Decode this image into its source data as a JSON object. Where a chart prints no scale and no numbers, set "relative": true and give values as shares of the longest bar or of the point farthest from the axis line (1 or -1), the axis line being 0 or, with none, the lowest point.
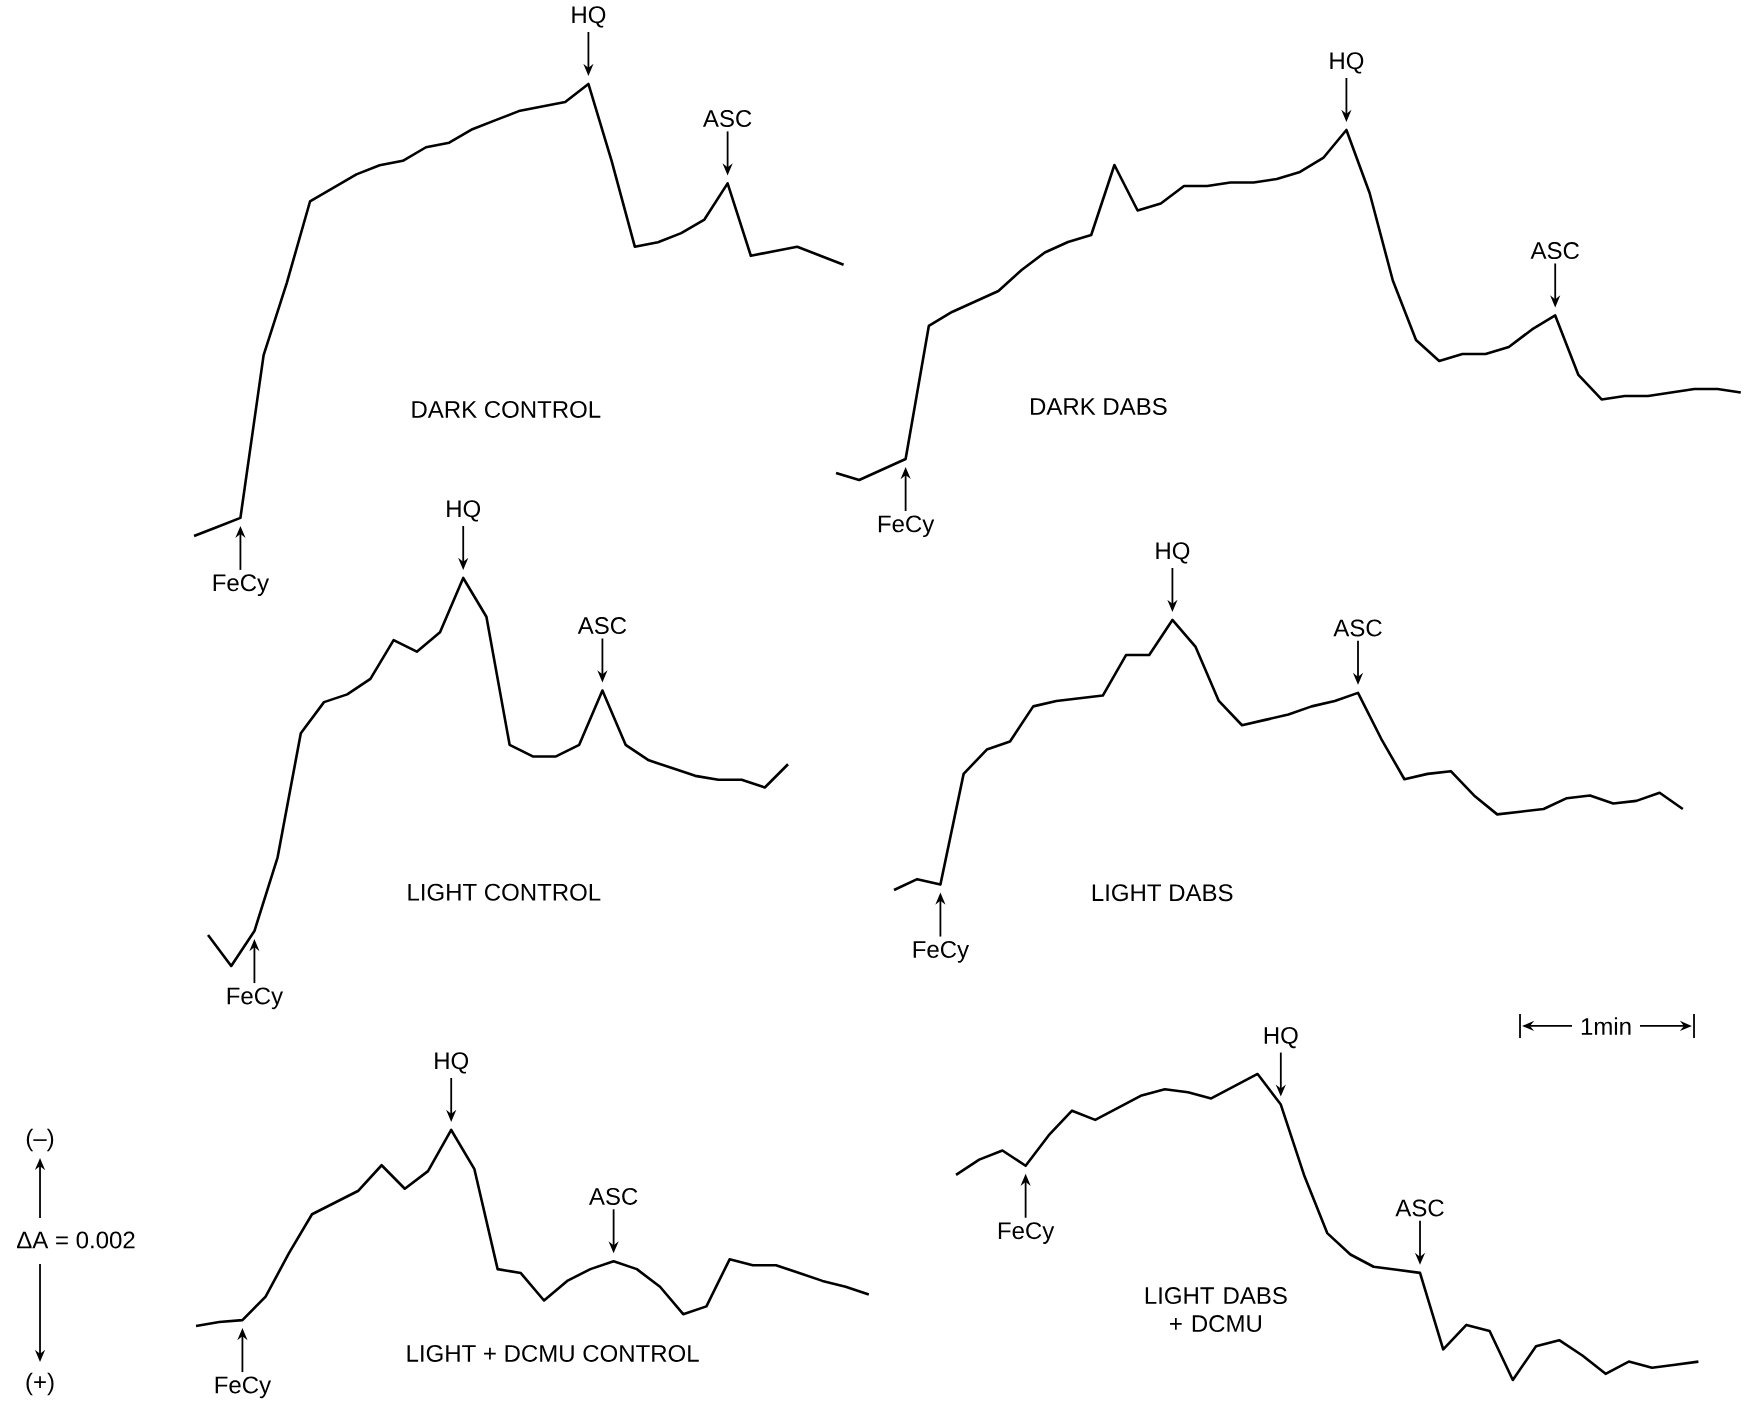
{
  "chart_data": [
    {
      "type": "line",
      "relative": true,
      "title": "DARK CONTROL",
      "color": "#000000",
      "categories": [
        null,
        null,
        null,
        null,
        null,
        null,
        null,
        null,
        null,
        null,
        null,
        null,
        null,
        null,
        null,
        null,
        null,
        null,
        null,
        null,
        null,
        null,
        null,
        null,
        null,
        null,
        null,
        null,
        null
      ],
      "values": [
        0,
        0.02,
        0.04,
        0.4,
        0.56,
        0.74,
        0.77,
        0.8,
        0.82,
        0.83,
        0.86,
        0.87,
        0.9,
        0.92,
        0.94,
        0.95,
        0.96,
        1,
        0.83,
        0.64,
        0.65,
        0.67,
        0.7,
        0.78,
        0.62,
        0.63,
        0.64,
        0.62,
        0.6
      ],
      "annotations": [
        {
          "text": "FeCy",
          "y": 0.04
        },
        {
          "text": "HQ",
          "y": 1
        },
        {
          "text": "ASC",
          "y": 0.78
        }
      ]
    },
    {
      "type": "line",
      "relative": true,
      "title": "DARK DABS",
      "color": "#000000",
      "categories": [
        null,
        null,
        null,
        null,
        null,
        null,
        null,
        null,
        null,
        null,
        null,
        null,
        null,
        null,
        null,
        null,
        null,
        null,
        null,
        null,
        null,
        null,
        null,
        null,
        null,
        null,
        null,
        null,
        null,
        null,
        null,
        null,
        null,
        null,
        null,
        null,
        null,
        null,
        null,
        null
      ],
      "values": [
        0.02,
        0,
        0.03,
        0.06,
        0.44,
        0.48,
        0.51,
        0.54,
        0.6,
        0.65,
        0.68,
        0.7,
        0.9,
        0.77,
        0.79,
        0.84,
        0.84,
        0.85,
        0.85,
        0.86,
        0.88,
        0.92,
        1,
        0.82,
        0.57,
        0.4,
        0.34,
        0.36,
        0.36,
        0.38,
        0.43,
        0.47,
        0.3,
        0.23,
        0.24,
        0.24,
        0.25,
        0.26,
        0.26,
        0.25
      ],
      "annotations": [
        {
          "text": "FeCy",
          "y": 0.06
        },
        {
          "text": "HQ",
          "y": 1
        },
        {
          "text": "ASC",
          "y": 0.47
        }
      ]
    },
    {
      "type": "line",
      "relative": true,
      "title": "LIGHT CONTROL",
      "color": "#000000",
      "categories": [
        null,
        null,
        null,
        null,
        null,
        null,
        null,
        null,
        null,
        null,
        null,
        null,
        null,
        null,
        null,
        null,
        null,
        null,
        null,
        null,
        null,
        null,
        null,
        null,
        null,
        null
      ],
      "values": [
        0.08,
        0,
        0.09,
        0.28,
        0.6,
        0.68,
        0.7,
        0.74,
        0.84,
        0.81,
        0.86,
        1,
        0.9,
        0.57,
        0.54,
        0.54,
        0.57,
        0.71,
        0.57,
        0.53,
        0.51,
        0.49,
        0.48,
        0.48,
        0.46,
        0.52
      ],
      "annotations": [
        {
          "text": "FeCy",
          "y": 0.09
        },
        {
          "text": "HQ",
          "y": 1
        },
        {
          "text": "ASC",
          "y": 0.71
        }
      ]
    },
    {
      "type": "line",
      "relative": true,
      "title": "LIGHT DABS",
      "color": "#000000",
      "categories": [
        null,
        null,
        null,
        null,
        null,
        null,
        null,
        null,
        null,
        null,
        null,
        null,
        null,
        null,
        null,
        null,
        null,
        null,
        null,
        null,
        null,
        null,
        null,
        null,
        null,
        null,
        null,
        null,
        null,
        null,
        null,
        null,
        null,
        null,
        null
      ],
      "values": [
        0,
        0.04,
        0.02,
        0.43,
        0.52,
        0.55,
        0.68,
        0.7,
        0.71,
        0.72,
        0.87,
        0.87,
        1,
        0.9,
        0.7,
        0.61,
        0.63,
        0.65,
        0.68,
        0.7,
        0.73,
        0.56,
        0.41,
        0.43,
        0.44,
        0.35,
        0.28,
        0.29,
        0.3,
        0.34,
        0.35,
        0.32,
        0.33,
        0.36,
        0.3
      ],
      "annotations": [
        {
          "text": "FeCy",
          "y": 0.02
        },
        {
          "text": "HQ",
          "y": 1
        },
        {
          "text": "ASC",
          "y": 0.73
        }
      ]
    },
    {
      "type": "line",
      "relative": true,
      "title": "LIGHT + DCMU CONTROL",
      "color": "#000000",
      "categories": [
        null,
        null,
        null,
        null,
        null,
        null,
        null,
        null,
        null,
        null,
        null,
        null,
        null,
        null,
        null,
        null,
        null,
        null,
        null,
        null,
        null,
        null,
        null,
        null,
        null,
        null,
        null,
        null,
        null,
        null
      ],
      "values": [
        0,
        0.02,
        0.03,
        0.15,
        0.37,
        0.57,
        0.63,
        0.69,
        0.82,
        0.7,
        0.79,
        1,
        0.8,
        0.29,
        0.27,
        0.13,
        0.23,
        0.29,
        0.33,
        0.29,
        0.2,
        0.06,
        0.1,
        0.34,
        0.31,
        0.31,
        0.27,
        0.23,
        0.2,
        0.16
      ],
      "annotations": [
        {
          "text": "FeCy",
          "y": 0.03
        },
        {
          "text": "HQ",
          "y": 1
        },
        {
          "text": "ASC",
          "y": 0.33
        },
        "(–)",
        "ΔA = 0.002",
        "(+)"
      ]
    },
    {
      "type": "line",
      "relative": true,
      "title": "LIGHT DABS + DCMU",
      "color": "#000000",
      "categories": [
        null,
        null,
        null,
        null,
        null,
        null,
        null,
        null,
        null,
        null,
        null,
        null,
        null,
        null,
        null,
        null,
        null,
        null,
        null,
        null,
        null,
        null,
        null,
        null,
        null,
        null,
        null,
        null,
        null,
        null,
        null,
        null,
        null
      ],
      "values": [
        0.67,
        0.72,
        0.75,
        0.7,
        0.8,
        0.88,
        0.85,
        0.89,
        0.93,
        0.95,
        0.94,
        0.92,
        0.96,
        1,
        0.9,
        0.67,
        0.48,
        0.41,
        0.37,
        0.36,
        0.35,
        0.1,
        0.18,
        0.16,
        0,
        0.11,
        0.13,
        0.08,
        0.02,
        0.06,
        0.04,
        0.05,
        0.06
      ],
      "annotations": [
        {
          "text": "FeCy",
          "y": 0.7
        },
        {
          "text": "HQ",
          "y": 0.9
        },
        {
          "text": "ASC",
          "y": 0.35
        },
        "1min"
      ]
    }
  ]
}
